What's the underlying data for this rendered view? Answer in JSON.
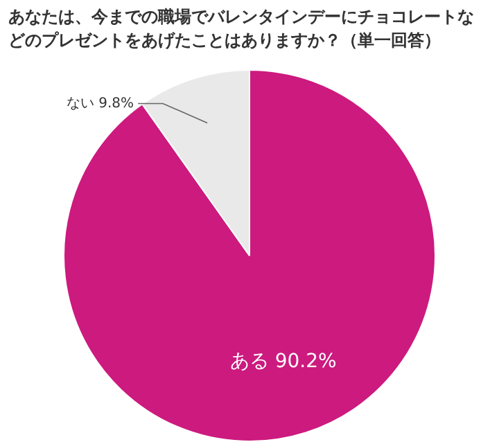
{
  "chart_data": {
    "type": "pie",
    "title": "あなたは、今までの職場でバレンタインデーにチョコレートなどのプレゼントをあげたことはありますか？（単一回答）",
    "categories": [
      "ある",
      "ない"
    ],
    "values": [
      90.2,
      9.8
    ],
    "value_labels": [
      "90.2%",
      "9.8%"
    ],
    "colors": [
      "#cc1a7f",
      "#e9e9e9"
    ],
    "legend": false
  }
}
